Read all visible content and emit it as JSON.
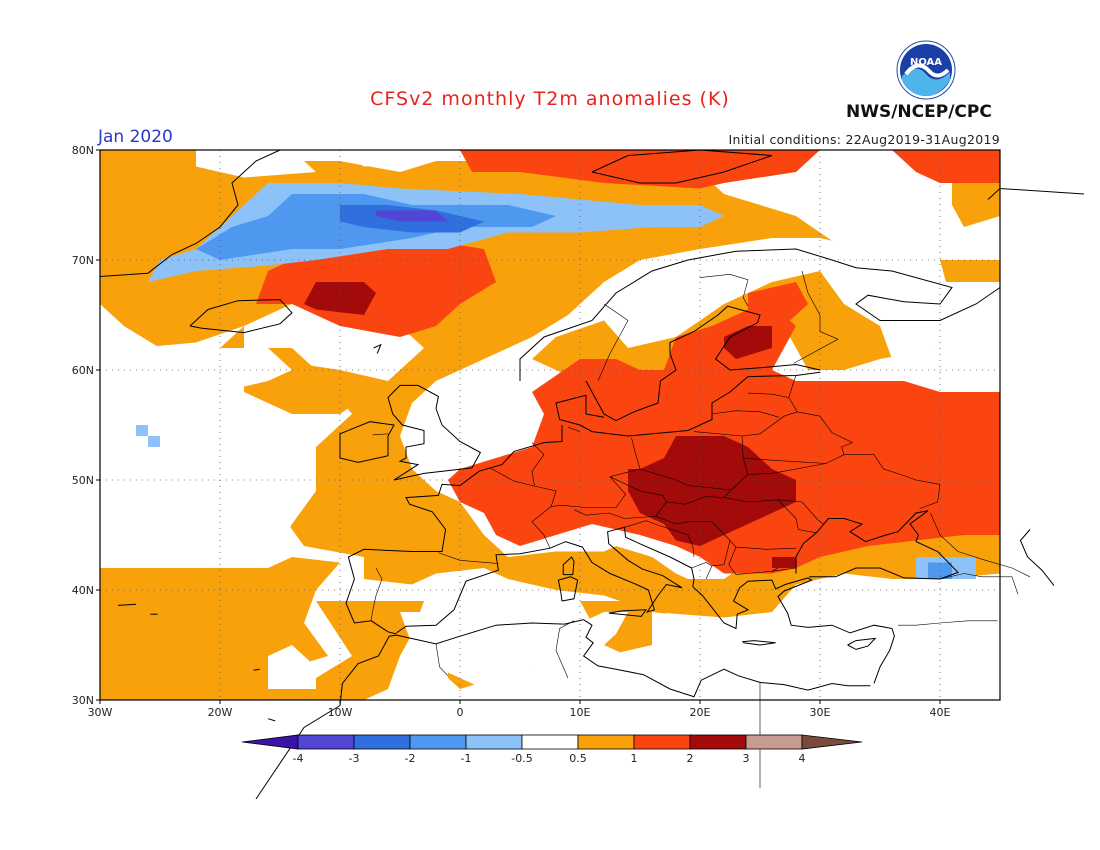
{
  "header": {
    "title": "CFSv2 monthly T2m anomalies (K)",
    "valid_month": "Jan 2020",
    "initial_conditions": "Initial conditions: 22Aug2019-31Aug2019",
    "agency": "NWS/NCEP/CPC",
    "logo_text": "NOAA"
  },
  "map": {
    "lon_range": [
      -30,
      45
    ],
    "lat_range": [
      30,
      80
    ],
    "lat_labels": [
      "80N",
      "70N",
      "60N",
      "50N",
      "40N",
      "30N"
    ],
    "lon_labels": [
      "30W",
      "20W",
      "10W",
      "0",
      "10E",
      "20E",
      "30E",
      "40E"
    ]
  },
  "legend": {
    "labels": [
      "-4",
      "-3",
      "-2",
      "-1",
      "-0.5",
      "0.5",
      "1",
      "2",
      "3",
      "4"
    ],
    "colors": [
      "#3a14a8",
      "#5146d6",
      "#2f6fde",
      "#4f98f0",
      "#8cc2f7",
      "#ffffff",
      "#f9a10a",
      "#fb4510",
      "#a30a0a",
      "#c79b8e",
      "#7a4a3a"
    ]
  }
}
